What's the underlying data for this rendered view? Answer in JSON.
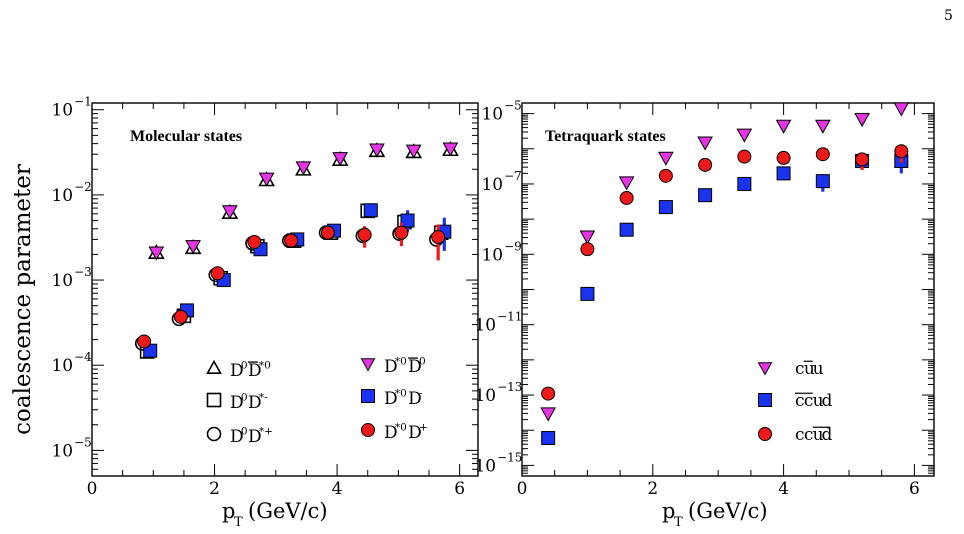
{
  "page_number": "5",
  "chart_data": [
    {
      "type": "scatter",
      "panel": "left",
      "title": "Molecular states",
      "ylabel": "coalescence parameter",
      "xlabel": "p_T (GeV/c)",
      "xlim": [
        0,
        6.3
      ],
      "ylim": [
        5e-06,
        0.12
      ],
      "yscale": "log",
      "x_ticks": [
        "0",
        "2",
        "4",
        "6"
      ],
      "y_ticks": [
        {
          "base": "10",
          "exp": "−1",
          "value": 0.1
        },
        {
          "base": "10",
          "exp": "−2",
          "value": 0.01
        },
        {
          "base": "10",
          "exp": "−3",
          "value": 0.001
        },
        {
          "base": "10",
          "exp": "−4",
          "value": 0.0001
        },
        {
          "base": "10",
          "exp": "−5",
          "value": 1e-05
        }
      ],
      "series": [
        {
          "name": "D0D̄*0",
          "label_main": "D",
          "sup1": "0",
          "label_bar": "D",
          "sup2": "*0",
          "marker": "triangle-up-open",
          "color": "#000000",
          "x": [
            1.05,
            1.65,
            2.25,
            2.85,
            3.45,
            4.05,
            4.65,
            5.25,
            5.85
          ],
          "y": [
            0.0021,
            0.0024,
            0.0062,
            0.015,
            0.02,
            0.026,
            0.033,
            0.032,
            0.034
          ],
          "err": []
        },
        {
          "name": "D0D*-",
          "label_main": "D",
          "sup1": "0",
          "label_bar": "D",
          "sup2": "*-",
          "marker": "square-open",
          "color": "#000000",
          "x": [
            0.9,
            1.5,
            2.1,
            2.7,
            3.3,
            3.9,
            4.5,
            5.1,
            5.7
          ],
          "y": [
            0.000145,
            0.00038,
            0.00105,
            0.0025,
            0.0029,
            0.0036,
            0.0065,
            0.0048,
            0.0036
          ],
          "err": []
        },
        {
          "name": "D0D*+",
          "label_main": "D",
          "sup1": "0",
          "label_bar": "D",
          "sup2": "*+",
          "marker": "circle-open",
          "color": "#000000",
          "x": [
            0.82,
            1.42,
            2.02,
            2.62,
            3.22,
            3.82,
            4.42,
            5.02,
            5.62
          ],
          "y": [
            0.00018,
            0.00035,
            0.00115,
            0.0027,
            0.0029,
            0.0036,
            0.0033,
            0.0035,
            0.003
          ],
          "err": []
        },
        {
          "name": "D*0D̄0",
          "label_main": "D",
          "sup1": "*0",
          "label_bar": "D",
          "sup2": "0",
          "marker": "triangle-down",
          "color": "#e633e6",
          "x": [
            1.05,
            1.65,
            2.25,
            2.85,
            3.45,
            4.05,
            4.65,
            5.25,
            5.85
          ],
          "y": [
            0.0021,
            0.0025,
            0.0064,
            0.0155,
            0.021,
            0.027,
            0.034,
            0.033,
            0.035
          ],
          "err": []
        },
        {
          "name": "D*0D-",
          "label_main": "D",
          "sup1": "*0",
          "label_bar": "D",
          "sup2": "-",
          "marker": "square",
          "color": "#1a33ee",
          "x": [
            0.95,
            1.55,
            2.15,
            2.75,
            3.35,
            3.95,
            4.55,
            5.15,
            5.75
          ],
          "y": [
            0.000148,
            0.00044,
            0.001,
            0.0023,
            0.003,
            0.0038,
            0.0066,
            0.005,
            0.0037
          ],
          "err": [
            null,
            null,
            null,
            null,
            null,
            null,
            null,
            [
              0.0037,
              0.0066
            ],
            [
              0.0022,
              0.0054
            ]
          ]
        },
        {
          "name": "D*0D+",
          "label_main": "D",
          "sup1": "*0",
          "label_bar": "D",
          "sup2": "+",
          "marker": "circle",
          "color": "#ee1a1a",
          "x": [
            0.85,
            1.45,
            2.05,
            2.65,
            3.25,
            3.85,
            4.45,
            5.05,
            5.65
          ],
          "y": [
            0.00019,
            0.00037,
            0.0012,
            0.0028,
            0.0029,
            0.0036,
            0.0034,
            0.0036,
            0.0032
          ],
          "err": [
            null,
            null,
            null,
            null,
            null,
            null,
            [
              0.0024,
              0.0043
            ],
            [
              0.0025,
              0.0047
            ],
            [
              0.0017,
              0.0045
            ]
          ]
        }
      ]
    },
    {
      "type": "scatter",
      "panel": "right",
      "title": "Tetraquark states",
      "ylabel": "",
      "xlabel": "p_T (GeV/c)",
      "xlim": [
        0,
        6.3
      ],
      "ylim": [
        5e-16,
        2e-05
      ],
      "yscale": "log",
      "x_ticks": [
        "0",
        "2",
        "4",
        "6"
      ],
      "y_ticks": [
        {
          "base": "10",
          "exp": "−5",
          "value": 1e-05
        },
        {
          "base": "10",
          "exp": "−7",
          "value": 1e-07
        },
        {
          "base": "10",
          "exp": "−9",
          "value": 1e-09
        },
        {
          "base": "10",
          "exp": "−11",
          "value": 1e-11
        },
        {
          "base": "10",
          "exp": "−13",
          "value": 1e-13
        },
        {
          "base": "10",
          "exp": "−15",
          "value": 1e-15
        }
      ],
      "series": [
        {
          "name": "cc̄uū",
          "label_plain": "c",
          "label_bars": [
            "c",
            "u",
            "u"
          ],
          "bar_idx": [
            1,
            3
          ],
          "marker": "triangle-down",
          "color": "#e633e6",
          "x": [
            0.4,
            1.0,
            1.6,
            2.2,
            2.8,
            3.4,
            4.0,
            4.6,
            5.2,
            5.8
          ],
          "y": [
            3e-14,
            3.2e-09,
            1.1e-07,
            5.5e-07,
            1.5e-06,
            2.5e-06,
            4.5e-06,
            4.5e-06,
            7e-06,
            1.4e-05
          ],
          "err": []
        },
        {
          "name": "c̄c̄ud",
          "label_bars": [
            "c",
            "c",
            "u",
            "d"
          ],
          "bar_idx": [
            0,
            1
          ],
          "marker": "square",
          "color": "#1a33ee",
          "x": [
            0.4,
            1.0,
            1.6,
            2.2,
            2.8,
            3.4,
            4.0,
            4.6,
            5.2,
            5.8
          ],
          "y": [
            6e-15,
            7.5e-11,
            5e-09,
            2.2e-08,
            4.8e-08,
            1e-07,
            2e-07,
            1.2e-07,
            4.5e-07,
            4.5e-07
          ],
          "err": [
            null,
            null,
            null,
            null,
            null,
            null,
            null,
            [
              6e-08,
              1.9e-07
            ],
            null,
            [
              2e-07,
              8e-07
            ]
          ]
        },
        {
          "name": "ccūd̄",
          "label_bars": [
            "c",
            "c",
            "u",
            "d"
          ],
          "bar_idx": [
            2,
            3
          ],
          "marker": "circle",
          "color": "#ee1a1a",
          "x": [
            0.4,
            1.0,
            1.6,
            2.2,
            2.8,
            3.4,
            4.0,
            4.6,
            5.2,
            5.8
          ],
          "y": [
            1.1e-13,
            1.4e-09,
            4e-08,
            1.7e-07,
            3.5e-07,
            6e-07,
            5.5e-07,
            7e-07,
            5e-07,
            8.5e-07
          ],
          "err": [
            null,
            null,
            null,
            null,
            null,
            null,
            null,
            null,
            [
              2.5e-07,
              6e-07
            ],
            [
              4e-07,
              1.1e-06
            ]
          ]
        }
      ]
    }
  ]
}
